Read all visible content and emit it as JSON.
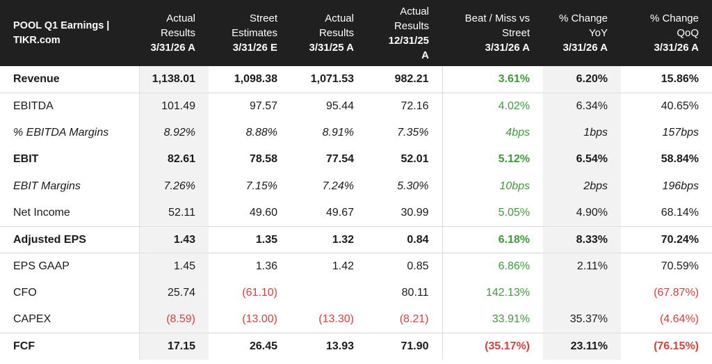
{
  "colors": {
    "positive": "#3f9a3a",
    "negative": "#d6413c",
    "header_bg": "#202020"
  },
  "header": {
    "title": "POOL Q1 Earnings | TIKR.com",
    "columns": [
      {
        "lines": [
          "Actual",
          "Results"
        ],
        "period": "3/31/26 A"
      },
      {
        "lines": [
          "Street",
          "Estimates"
        ],
        "period": "3/31/26 E"
      },
      {
        "lines": [
          "Actual",
          "Results"
        ],
        "period": "3/31/25 A"
      },
      {
        "lines": [
          "Actual",
          "Results",
          "12/31/25"
        ],
        "period": "A"
      },
      {
        "lines": [
          "Beat / Miss vs",
          "Street"
        ],
        "period": "3/31/26 A"
      },
      {
        "lines": [
          "% Change",
          "YoY"
        ],
        "period": "3/31/26 A"
      },
      {
        "lines": [
          "% Change",
          "QoQ"
        ],
        "period": "3/31/26 A"
      }
    ]
  },
  "rows": [
    {
      "label": "Revenue",
      "style": "bold",
      "values": [
        "1,138.01",
        "1,098.38",
        "1,071.53",
        "982.21",
        "3.61%",
        "6.20%",
        "15.86%"
      ]
    },
    {
      "label": "EBITDA",
      "style": "normal",
      "values": [
        "101.49",
        "97.57",
        "95.44",
        "72.16",
        "4.02%",
        "6.34%",
        "40.65%"
      ]
    },
    {
      "label": "% EBITDA Margins",
      "style": "italic",
      "values": [
        "8.92%",
        "8.88%",
        "8.91%",
        "7.35%",
        "4bps",
        "1bps",
        "157bps"
      ]
    },
    {
      "label": "EBIT",
      "style": "bold",
      "values": [
        "82.61",
        "78.58",
        "77.54",
        "52.01",
        "5.12%",
        "6.54%",
        "58.84%"
      ]
    },
    {
      "label": "EBIT Margins",
      "style": "italic",
      "values": [
        "7.26%",
        "7.15%",
        "7.24%",
        "5.30%",
        "10bps",
        "2bps",
        "196bps"
      ]
    },
    {
      "label": "Net Income",
      "style": "normal",
      "values": [
        "52.11",
        "49.60",
        "49.67",
        "30.99",
        "5.05%",
        "4.90%",
        "68.14%"
      ]
    },
    {
      "label": "Adjusted EPS",
      "style": "bold",
      "values": [
        "1.43",
        "1.35",
        "1.32",
        "0.84",
        "6.18%",
        "8.33%",
        "70.24%"
      ]
    },
    {
      "label": "EPS GAAP",
      "style": "normal",
      "values": [
        "1.45",
        "1.36",
        "1.42",
        "0.85",
        "6.86%",
        "2.11%",
        "70.59%"
      ]
    },
    {
      "label": "CFO",
      "style": "normal",
      "values": [
        "25.74",
        "(61.10)",
        "",
        "80.11",
        "142.13%",
        "",
        "(67.87%)"
      ]
    },
    {
      "label": "CAPEX",
      "style": "normal",
      "values": [
        "(8.59)",
        "(13.00)",
        "(13.30)",
        "(8.21)",
        "33.91%",
        "35.37%",
        "(4.64%)"
      ]
    },
    {
      "label": "FCF",
      "style": "bold",
      "values": [
        "17.15",
        "26.45",
        "13.93",
        "71.90",
        "(35.17%)",
        "23.11%",
        "(76.15%)"
      ]
    }
  ]
}
